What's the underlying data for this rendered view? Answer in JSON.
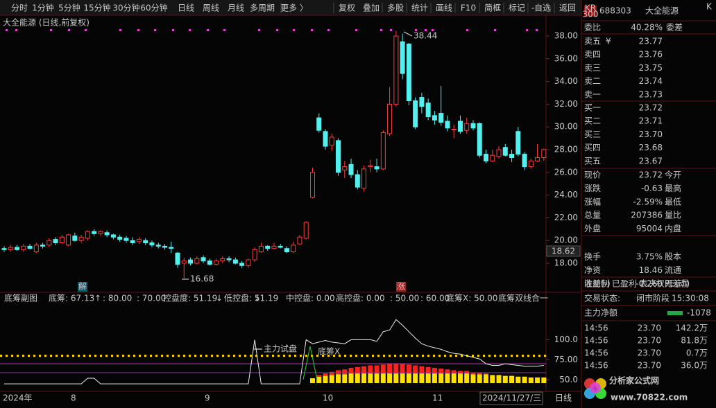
{
  "toolbar": [
    "分时",
    "1分钟",
    "5分钟",
    "15分钟",
    "30分钟",
    "60分钟",
    "日线",
    "周线",
    "月线",
    "多周期",
    "更多 〉",
    "复权",
    "叠加",
    "多股",
    "统计",
    "画线",
    "F10",
    "简框",
    "标记",
    "-自选",
    "返回"
  ],
  "chart_title": "大全能源 (日线,前复权)",
  "chart_data": {
    "type": "candlestick",
    "candles": [
      [
        19.3,
        19.2,
        19.5,
        19.0
      ],
      [
        19.2,
        19.4,
        19.6,
        19.0
      ],
      [
        19.4,
        19.2,
        19.6,
        19.1
      ],
      [
        19.2,
        19.5,
        19.7,
        19.0
      ],
      [
        19.5,
        19.3,
        19.7,
        19.2
      ],
      [
        19.0,
        19.6,
        19.8,
        18.9
      ],
      [
        19.6,
        19.5,
        19.8,
        19.3
      ],
      [
        19.6,
        20.0,
        20.2,
        19.4
      ],
      [
        20.1,
        19.8,
        20.3,
        19.6
      ],
      [
        19.8,
        20.3,
        20.5,
        19.7
      ],
      [
        19.6,
        20.5,
        20.6,
        19.5
      ],
      [
        20.4,
        20.0,
        20.7,
        19.9
      ],
      [
        20.0,
        20.3,
        20.5,
        19.8
      ],
      [
        20.2,
        20.8,
        20.9,
        20.0
      ],
      [
        20.8,
        20.6,
        21.0,
        20.4
      ],
      [
        20.6,
        20.8,
        20.9,
        20.4
      ],
      [
        20.7,
        20.5,
        20.9,
        20.3
      ],
      [
        20.5,
        20.3,
        20.6,
        20.1
      ],
      [
        20.3,
        20.1,
        20.5,
        19.9
      ],
      [
        20.2,
        20.0,
        20.4,
        19.8
      ],
      [
        20.0,
        19.8,
        20.3,
        19.6
      ],
      [
        19.9,
        20.1,
        20.3,
        19.7
      ],
      [
        20.0,
        19.8,
        20.2,
        19.6
      ],
      [
        19.8,
        19.6,
        20.0,
        19.4
      ],
      [
        19.6,
        19.5,
        19.8,
        19.3
      ],
      [
        19.5,
        19.4,
        19.7,
        19.2
      ],
      [
        19.4,
        19.3,
        19.9,
        18.9
      ],
      [
        18.9,
        17.9,
        19.0,
        17.6
      ],
      [
        18.0,
        18.2,
        18.5,
        16.68
      ],
      [
        18.3,
        18.0,
        18.5,
        17.8
      ],
      [
        18.0,
        18.4,
        18.6,
        17.9
      ],
      [
        18.5,
        18.2,
        18.7,
        18.0
      ],
      [
        18.2,
        17.9,
        18.4,
        17.8
      ],
      [
        17.9,
        18.2,
        18.4,
        17.8
      ],
      [
        18.2,
        18.4,
        18.6,
        18.0
      ],
      [
        18.4,
        18.3,
        18.6,
        18.1
      ],
      [
        18.3,
        18.0,
        18.5,
        17.9
      ],
      [
        18.0,
        17.8,
        18.2,
        17.6
      ],
      [
        17.8,
        18.3,
        18.4,
        17.6
      ],
      [
        18.3,
        19.2,
        19.4,
        18.1
      ],
      [
        19.0,
        19.5,
        19.8,
        18.9
      ],
      [
        19.5,
        19.3,
        19.6,
        19.1
      ],
      [
        19.3,
        19.5,
        19.8,
        19.2
      ],
      [
        19.5,
        19.4,
        19.7,
        19.3
      ],
      [
        19.3,
        19.0,
        19.5,
        18.9
      ],
      [
        19.0,
        19.6,
        19.9,
        18.9
      ],
      [
        19.7,
        20.3,
        20.5,
        19.6
      ],
      [
        20.2,
        21.6,
        21.7,
        20.1
      ],
      [
        23.8,
        26.0,
        26.4,
        23.7
      ],
      [
        30.8,
        29.7,
        31.2,
        29.5
      ],
      [
        29.6,
        28.3,
        29.8,
        28.0
      ],
      [
        28.4,
        29.1,
        29.4,
        27.9
      ],
      [
        28.8,
        26.0,
        29.0,
        25.7
      ],
      [
        26.2,
        26.5,
        27.0,
        25.5
      ],
      [
        26.7,
        25.8,
        27.2,
        25.5
      ],
      [
        25.8,
        24.7,
        26.2,
        24.5
      ],
      [
        24.6,
        26.3,
        26.6,
        24.3
      ],
      [
        26.5,
        26.6,
        27.1,
        26.0
      ],
      [
        26.5,
        26.3,
        27.2,
        26.0
      ],
      [
        26.3,
        29.5,
        29.7,
        26.2
      ],
      [
        29.4,
        32.0,
        33.5,
        29.2
      ],
      [
        32.0,
        38.0,
        38.44,
        31.8
      ],
      [
        37.5,
        34.7,
        38.2,
        34.2
      ],
      [
        37.3,
        32.3,
        37.4,
        31.9
      ],
      [
        32.3,
        30.0,
        32.6,
        29.8
      ],
      [
        32.6,
        31.8,
        33.0,
        31.2
      ],
      [
        32.1,
        30.9,
        32.5,
        30.6
      ],
      [
        31.0,
        30.6,
        31.4,
        30.2
      ],
      [
        31.2,
        30.4,
        33.6,
        30.1
      ],
      [
        30.5,
        29.9,
        31.0,
        29.6
      ],
      [
        29.8,
        29.8,
        30.2,
        29.0
      ],
      [
        30.5,
        29.6,
        31.0,
        29.4
      ],
      [
        29.7,
        30.3,
        30.8,
        29.4
      ],
      [
        30.3,
        29.9,
        30.6,
        29.7
      ],
      [
        30.3,
        27.5,
        30.4,
        27.3
      ],
      [
        27.6,
        27.0,
        28.0,
        26.8
      ],
      [
        27.0,
        27.5,
        28.0,
        26.9
      ],
      [
        27.4,
        28.0,
        28.3,
        27.2
      ],
      [
        28.2,
        27.5,
        28.5,
        27.4
      ],
      [
        27.6,
        27.3,
        28.0,
        26.9
      ],
      [
        29.6,
        27.6,
        30.0,
        27.4
      ],
      [
        27.6,
        26.5,
        27.8,
        26.2
      ],
      [
        26.5,
        27.0,
        27.2,
        26.3
      ],
      [
        27.0,
        27.3,
        28.5,
        26.9
      ],
      [
        27.3,
        28.0,
        28.1,
        27.0
      ]
    ],
    "colors": {
      "up": "#ff3b3b",
      "down": "#54f0f0"
    },
    "ylim": [
      15.44,
      39.83
    ],
    "yticks": [
      {
        "value": 38,
        "label": "38.00"
      },
      {
        "value": 36,
        "label": "36.00"
      },
      {
        "value": 34,
        "label": "34.00"
      },
      {
        "value": 32,
        "label": "32.00"
      },
      {
        "value": 30,
        "label": "30.00"
      },
      {
        "value": 28,
        "label": "28.00"
      },
      {
        "value": 26,
        "label": "26.00"
      },
      {
        "value": 24,
        "label": "24.00"
      },
      {
        "value": 22,
        "label": "22.00"
      },
      {
        "value": 20,
        "label": "20.00"
      },
      {
        "value": 18,
        "label": "18.00"
      }
    ],
    "high_label": "38.44",
    "low_label": "16.68",
    "price_marker": "18.62",
    "markers": [
      "解",
      "涨"
    ],
    "xlabels": [
      "2024年",
      "8",
      "9",
      "10",
      "11",
      "2024/11/27/三",
      "日线"
    ]
  },
  "indicator": {
    "type": "line",
    "title": "底筹副图",
    "header": [
      "底筹: 67.13",
      "↑",
      ": 80.00",
      ": 70.00",
      "控盘度: 51.19",
      "↓",
      "低控盘: 51.19",
      "↓",
      "中控盘: 0.00",
      "高控盘: 0.00",
      ": 50.00",
      ": 60.00",
      "底筹X: 50.00",
      "底筹双线合一"
    ],
    "labels": [
      "主力试盘",
      "底筹X"
    ],
    "line": [
      45,
      45,
      45,
      45,
      45,
      45,
      45,
      45,
      45,
      45,
      45,
      45,
      45,
      52,
      52,
      45,
      45,
      45,
      45,
      45,
      45,
      45,
      45,
      45,
      45,
      45,
      45,
      45,
      45,
      45,
      45,
      45,
      45,
      45,
      45,
      45,
      45,
      45,
      45,
      100,
      45,
      45,
      45,
      45,
      45,
      45,
      45,
      100,
      95,
      97,
      99,
      97,
      96,
      95,
      100,
      100,
      100,
      100,
      98,
      110,
      112,
      125,
      118,
      110,
      102,
      95,
      92,
      90,
      88,
      85,
      83,
      82,
      80,
      78,
      76,
      70,
      68,
      68,
      70,
      69,
      68,
      67,
      67,
      67,
      68
    ],
    "bars_yellow": [
      null,
      null,
      null,
      null,
      null,
      null,
      null,
      null,
      null,
      null,
      null,
      null,
      null,
      null,
      null,
      null,
      null,
      null,
      null,
      null,
      null,
      null,
      null,
      null,
      null,
      null,
      null,
      null,
      null,
      null,
      null,
      null,
      null,
      null,
      null,
      null,
      null,
      null,
      null,
      null,
      null,
      null,
      null,
      null,
      null,
      null,
      null,
      null,
      52,
      54,
      55,
      56,
      57,
      57,
      58,
      58,
      58,
      58,
      58,
      58,
      58,
      58,
      58,
      58,
      58,
      58,
      58,
      58,
      58,
      58,
      58,
      58,
      58,
      57,
      57,
      57,
      56,
      56,
      55,
      55,
      54,
      54,
      53,
      53,
      53
    ],
    "bars_red": [
      null,
      null,
      null,
      null,
      null,
      null,
      null,
      null,
      null,
      null,
      null,
      null,
      null,
      null,
      null,
      null,
      null,
      null,
      null,
      null,
      null,
      null,
      null,
      null,
      null,
      null,
      null,
      null,
      null,
      null,
      null,
      null,
      null,
      null,
      null,
      null,
      null,
      null,
      null,
      null,
      null,
      null,
      null,
      null,
      null,
      null,
      null,
      null,
      null,
      2,
      3,
      4,
      5,
      6,
      7,
      8,
      9,
      10,
      10,
      11,
      12,
      12,
      12,
      11,
      10,
      9,
      8,
      7,
      6,
      5,
      4,
      3,
      3,
      2,
      2,
      1,
      null,
      null,
      null,
      null,
      null,
      null,
      null,
      null,
      null
    ],
    "levels": [
      80,
      70
    ],
    "ylim": [
      46,
      159
    ],
    "yticks": [
      {
        "value": 100,
        "label": "100.0"
      },
      {
        "value": 75,
        "label": "75.00"
      },
      {
        "value": 50,
        "label": "50.0"
      }
    ]
  },
  "quote": {
    "kr": "KR",
    "kr_sub": "300",
    "code": "688303",
    "name": "大全能源",
    "k": "K",
    "webi": [
      "委比",
      "40.28%",
      "委差"
    ],
    "ask_mark": "¥",
    "asks": [
      [
        "卖五",
        "23.77"
      ],
      [
        "卖四",
        "23.76"
      ],
      [
        "卖三",
        "23.75"
      ],
      [
        "卖二",
        "23.74"
      ],
      [
        "卖一",
        "23.73"
      ]
    ],
    "bids": [
      [
        "买一",
        "23.72"
      ],
      [
        "买二",
        "23.71"
      ],
      [
        "买三",
        "23.70"
      ],
      [
        "买四",
        "23.68"
      ],
      [
        "买五",
        "23.67"
      ]
    ],
    "stats": [
      [
        "现价",
        "23.72",
        "今开"
      ],
      [
        "涨跌",
        "-0.63",
        "最高"
      ],
      [
        "涨幅",
        "-2.59%",
        "最低"
      ],
      [
        "总量",
        "207386",
        "量比"
      ],
      [
        "外盘",
        "95004",
        "内盘"
      ],
      [
        "换手",
        "3.75%",
        "股本"
      ],
      [
        "净资",
        "18.46",
        "流通"
      ],
      [
        "收益(-)",
        "-0.260",
        "PE(动)"
      ]
    ],
    "tags": "注册制 已盈利 表决权无差异",
    "status": [
      "交易状态:",
      "闭市阶段",
      "15:30:08"
    ],
    "net": [
      "主力净额",
      "-1078"
    ],
    "trades": [
      [
        "14:56",
        "23.70",
        "142.2万"
      ],
      [
        "14:56",
        "23.70",
        "81.8万"
      ],
      [
        "14:56",
        "23.70",
        "0.7万"
      ],
      [
        "14:56",
        "23.70",
        "36.0万"
      ]
    ]
  },
  "watermark": [
    "分析家公式网",
    "www.70822.com"
  ]
}
